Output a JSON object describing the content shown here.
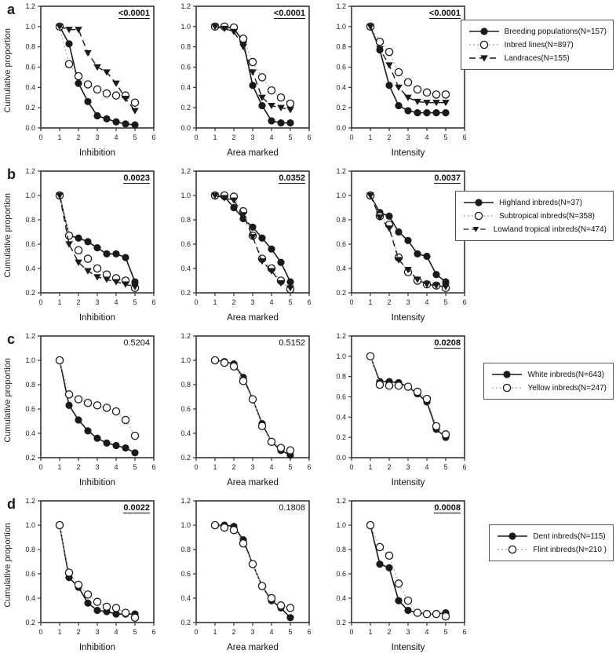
{
  "figure": {
    "ylabel": "Cumulative proportion",
    "xlim": [
      0,
      6
    ],
    "xticks": [
      0,
      1,
      2,
      3,
      4,
      5,
      6
    ],
    "x": [
      1,
      1.5,
      2,
      2.5,
      3,
      3.5,
      4,
      4.5,
      5
    ],
    "colors": {
      "foreground": "#1a1a1a",
      "dotted_line": "#b3b3b3",
      "background": "#ffffff",
      "axis": "#333333"
    }
  },
  "panels": [
    {
      "label": "a"
    },
    {
      "label": "b"
    },
    {
      "label": "c"
    },
    {
      "label": "d"
    }
  ],
  "chart_data": [
    {
      "panel": "a",
      "slot": 0,
      "type": "line",
      "xlabel": "Inhibition",
      "ylabel": "Cumulative proportion",
      "pvalue": "<0.0001",
      "pvalue_significant": true,
      "ylim": [
        0.0,
        1.2
      ],
      "series": [
        {
          "name": "Breeding populations(N=157)",
          "marker": "filled-circle",
          "line": "solid",
          "values": [
            1.0,
            0.83,
            0.44,
            0.26,
            0.12,
            0.09,
            0.06,
            0.04,
            0.03
          ]
        },
        {
          "name": "Inbred lines(N=897)",
          "marker": "open-circle",
          "line": "dotted",
          "values": [
            1.0,
            0.63,
            0.51,
            0.43,
            0.38,
            0.34,
            0.32,
            0.32,
            0.25
          ]
        },
        {
          "name": "Landraces(N=155)",
          "marker": "filled-triangle-down",
          "line": "dashed",
          "values": [
            1.0,
            0.97,
            0.97,
            0.74,
            0.6,
            0.55,
            0.44,
            0.29,
            0.17
          ]
        }
      ]
    },
    {
      "panel": "a",
      "slot": 1,
      "type": "line",
      "xlabel": "Area marked",
      "ylabel": "Cumulative proportion",
      "pvalue": "<0.0001",
      "pvalue_significant": true,
      "ylim": [
        0.0,
        1.2
      ],
      "series": [
        {
          "name": "Breeding populations(N=157)",
          "marker": "filled-circle",
          "line": "solid",
          "values": [
            1.0,
            1.0,
            0.98,
            0.85,
            0.42,
            0.22,
            0.07,
            0.05,
            0.05
          ]
        },
        {
          "name": "Inbred lines(N=897)",
          "marker": "open-circle",
          "line": "dotted",
          "values": [
            1.0,
            1.0,
            0.99,
            0.88,
            0.65,
            0.5,
            0.37,
            0.3,
            0.24
          ]
        },
        {
          "name": "Landraces(N=155)",
          "marker": "filled-triangle-down",
          "line": "dashed",
          "values": [
            1.0,
            0.98,
            0.95,
            0.8,
            0.55,
            0.3,
            0.22,
            0.2,
            0.18
          ]
        }
      ]
    },
    {
      "panel": "a",
      "slot": 2,
      "type": "line",
      "xlabel": "Intensity",
      "ylabel": "Cumulative proportion",
      "pvalue": "<0.0001",
      "pvalue_significant": true,
      "ylim": [
        0.0,
        1.2
      ],
      "series": [
        {
          "name": "Breeding populations(N=157)",
          "marker": "filled-circle",
          "line": "solid",
          "values": [
            1.0,
            0.77,
            0.42,
            0.22,
            0.17,
            0.15,
            0.15,
            0.15,
            0.15
          ]
        },
        {
          "name": "Inbred lines(N=897)",
          "marker": "open-circle",
          "line": "dotted",
          "values": [
            1.0,
            0.85,
            0.75,
            0.55,
            0.45,
            0.38,
            0.35,
            0.33,
            0.33
          ]
        },
        {
          "name": "Landraces(N=155)",
          "marker": "filled-triangle-down",
          "line": "dashed",
          "values": [
            1.0,
            0.78,
            0.62,
            0.4,
            0.3,
            0.26,
            0.25,
            0.25,
            0.25
          ]
        }
      ]
    },
    {
      "panel": "b",
      "slot": 0,
      "type": "line",
      "xlabel": "Inhibition",
      "ylabel": "Cumulative proportion",
      "pvalue": "0.0023",
      "pvalue_significant": true,
      "ylim": [
        0.2,
        1.2
      ],
      "series": [
        {
          "name": "Highland inbreds(N=37)",
          "marker": "filled-circle",
          "line": "solid",
          "values": [
            1.0,
            0.67,
            0.65,
            0.62,
            0.57,
            0.52,
            0.52,
            0.49,
            0.29
          ]
        },
        {
          "name": "Subtropical inbreds(N=358)",
          "marker": "open-circle",
          "line": "dotted",
          "values": [
            1.0,
            0.67,
            0.55,
            0.48,
            0.4,
            0.35,
            0.32,
            0.3,
            0.24
          ]
        },
        {
          "name": "Lowland tropical inbreds(N=474)",
          "marker": "filled-triangle-down",
          "line": "dashed",
          "values": [
            1.0,
            0.6,
            0.45,
            0.38,
            0.33,
            0.31,
            0.29,
            0.27,
            0.25
          ]
        }
      ]
    },
    {
      "panel": "b",
      "slot": 1,
      "type": "line",
      "xlabel": "Area marked",
      "ylabel": "Cumulative proportion",
      "pvalue": "0.0352",
      "pvalue_significant": true,
      "ylim": [
        0.2,
        1.2
      ],
      "series": [
        {
          "name": "Highland inbreds(N=37)",
          "marker": "filled-circle",
          "line": "solid",
          "values": [
            1.0,
            0.99,
            0.9,
            0.81,
            0.74,
            0.65,
            0.56,
            0.45,
            0.29
          ]
        },
        {
          "name": "Subtropical inbreds(N=358)",
          "marker": "open-circle",
          "line": "dotted",
          "values": [
            1.0,
            1.0,
            0.99,
            0.87,
            0.67,
            0.48,
            0.4,
            0.3,
            0.23
          ]
        },
        {
          "name": "Lowland tropical inbreds(N=474)",
          "marker": "filled-triangle-down",
          "line": "dashed",
          "values": [
            1.0,
            0.98,
            0.96,
            0.84,
            0.66,
            0.46,
            0.38,
            0.28,
            0.24
          ]
        }
      ]
    },
    {
      "panel": "b",
      "slot": 2,
      "type": "line",
      "xlabel": "Intensity",
      "ylabel": "Cumulative proportion",
      "pvalue": "0.0037",
      "pvalue_significant": true,
      "ylim": [
        0.2,
        1.2
      ],
      "series": [
        {
          "name": "Highland inbreds(N=37)",
          "marker": "filled-circle",
          "line": "solid",
          "values": [
            1.0,
            0.86,
            0.83,
            0.7,
            0.63,
            0.52,
            0.5,
            0.35,
            0.29
          ]
        },
        {
          "name": "Subtropical inbreds(N=358)",
          "marker": "open-circle",
          "line": "dotted",
          "values": [
            1.0,
            0.83,
            0.76,
            0.49,
            0.37,
            0.3,
            0.27,
            0.26,
            0.24
          ]
        },
        {
          "name": "Lowland tropical inbreds(N=474)",
          "marker": "filled-triangle-down",
          "line": "dashed",
          "values": [
            1.0,
            0.82,
            0.73,
            0.47,
            0.39,
            0.31,
            0.27,
            0.26,
            0.25
          ]
        }
      ]
    },
    {
      "panel": "c",
      "slot": 0,
      "type": "line",
      "xlabel": "Inhibition",
      "ylabel": "Cumulative proportion",
      "pvalue": "0.5204",
      "pvalue_significant": false,
      "ylim": [
        0.2,
        1.2
      ],
      "series": [
        {
          "name": "White inbreds(N=643)",
          "marker": "filled-circle",
          "line": "solid",
          "values": [
            1.0,
            0.63,
            0.51,
            0.42,
            0.36,
            0.32,
            0.3,
            0.28,
            0.24
          ]
        },
        {
          "name": "Yellow inbreds(N=247)",
          "marker": "open-circle",
          "line": "dotted",
          "values": [
            1.0,
            0.72,
            0.68,
            0.65,
            0.63,
            0.61,
            0.58,
            0.51,
            0.38
          ]
        }
      ]
    },
    {
      "panel": "c",
      "slot": 1,
      "type": "line",
      "xlabel": "Area marked",
      "ylabel": "Cumulative proportion",
      "pvalue": "0.5152",
      "pvalue_significant": false,
      "ylim": [
        0.2,
        1.2
      ],
      "series": [
        {
          "name": "White inbreds(N=643)",
          "marker": "filled-circle",
          "line": "solid",
          "values": [
            1.0,
            0.99,
            0.97,
            0.86,
            0.68,
            0.48,
            0.33,
            0.26,
            0.22
          ]
        },
        {
          "name": "Yellow inbreds(N=247)",
          "marker": "open-circle",
          "line": "dotted",
          "values": [
            1.0,
            0.98,
            0.95,
            0.83,
            0.68,
            0.46,
            0.33,
            0.28,
            0.26
          ]
        }
      ]
    },
    {
      "panel": "c",
      "slot": 2,
      "type": "line",
      "xlabel": "Intensity",
      "ylabel": "Cumulative proportion",
      "pvalue": "0.0208",
      "pvalue_significant": true,
      "ylim": [
        0.0,
        1.2
      ],
      "series": [
        {
          "name": "White inbreds(N=643)",
          "marker": "filled-circle",
          "line": "solid",
          "values": [
            1.0,
            0.75,
            0.75,
            0.74,
            0.7,
            0.63,
            0.55,
            0.28,
            0.2
          ]
        },
        {
          "name": "Yellow inbreds(N=247)",
          "marker": "open-circle",
          "line": "dotted",
          "values": [
            1.0,
            0.72,
            0.71,
            0.71,
            0.7,
            0.65,
            0.58,
            0.31,
            0.23
          ]
        }
      ]
    },
    {
      "panel": "d",
      "slot": 0,
      "type": "line",
      "xlabel": "Inhibition",
      "ylabel": "Cumulative proportion",
      "pvalue": "0.0022",
      "pvalue_significant": true,
      "ylim": [
        0.2,
        1.2
      ],
      "series": [
        {
          "name": "Dent inbreds(N=115)",
          "marker": "filled-circle",
          "line": "solid",
          "values": [
            1.0,
            0.57,
            0.49,
            0.36,
            0.3,
            0.29,
            0.27,
            0.27,
            0.27
          ]
        },
        {
          "name": "Flint inbreds(N=210 )",
          "marker": "open-circle",
          "line": "dotted",
          "values": [
            1.0,
            0.61,
            0.51,
            0.43,
            0.37,
            0.33,
            0.32,
            0.28,
            0.24
          ]
        }
      ]
    },
    {
      "panel": "d",
      "slot": 1,
      "type": "line",
      "xlabel": "Area marked",
      "ylabel": "Cumulative proportion",
      "pvalue": "0.1808",
      "pvalue_significant": false,
      "ylim": [
        0.2,
        1.2
      ],
      "series": [
        {
          "name": "Dent inbreds(N=115)",
          "marker": "filled-circle",
          "line": "solid",
          "values": [
            1.0,
            1.0,
            0.99,
            0.88,
            0.68,
            0.5,
            0.38,
            0.32,
            0.24
          ]
        },
        {
          "name": "Flint inbreds(N=210 )",
          "marker": "open-circle",
          "line": "dotted",
          "values": [
            1.0,
            0.98,
            0.96,
            0.85,
            0.68,
            0.5,
            0.4,
            0.34,
            0.32
          ]
        }
      ]
    },
    {
      "panel": "d",
      "slot": 2,
      "type": "line",
      "xlabel": "Intensity",
      "ylabel": "Cumulative proportion",
      "pvalue": "0.0008",
      "pvalue_significant": true,
      "ylim": [
        0.2,
        1.2
      ],
      "series": [
        {
          "name": "Dent inbreds(N=115)",
          "marker": "filled-circle",
          "line": "solid",
          "values": [
            1.0,
            0.68,
            0.65,
            0.38,
            0.3,
            0.28,
            0.27,
            0.27,
            0.28
          ]
        },
        {
          "name": "Flint inbreds(N=210 )",
          "marker": "open-circle",
          "line": "dotted",
          "values": [
            1.0,
            0.82,
            0.75,
            0.52,
            0.38,
            0.28,
            0.27,
            0.27,
            0.25
          ]
        }
      ]
    }
  ]
}
